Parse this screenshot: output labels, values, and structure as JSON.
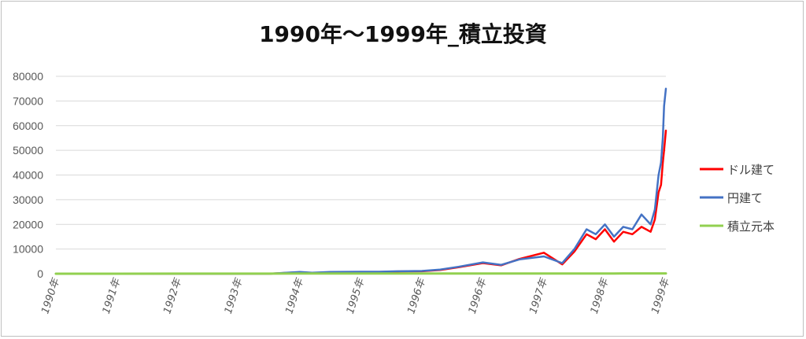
{
  "chart_data": {
    "type": "line",
    "title": "1990年～1999年_積立投資",
    "xlabel": "",
    "ylabel": "",
    "ylim": [
      0,
      80000
    ],
    "yticks": [
      0,
      10000,
      20000,
      30000,
      40000,
      50000,
      60000,
      70000,
      80000
    ],
    "x_tick_labels": [
      "1990年",
      "1991年",
      "1992年",
      "1993年",
      "1994年",
      "1995年",
      "1996年",
      "1996年",
      "1997年",
      "1998年",
      "1999年"
    ],
    "grid": true,
    "legend_position": "right",
    "x": [
      0,
      1,
      2,
      3,
      3.5,
      4,
      4.2,
      4.5,
      5,
      5.3,
      5.6,
      6,
      6.3,
      6.6,
      7,
      7.3,
      7.6,
      8,
      8.3,
      8.5,
      8.7,
      8.85,
      9,
      9.15,
      9.3,
      9.45,
      9.6,
      9.75,
      9.82,
      9.88,
      9.92,
      9.95,
      9.97,
      10.0
    ],
    "series": [
      {
        "name": "ドル建て",
        "color": "#ff0000",
        "values": [
          0,
          0,
          0,
          0,
          0,
          600,
          300,
          600,
          700,
          700,
          900,
          1000,
          1500,
          2600,
          4300,
          3400,
          6000,
          8500,
          3800,
          9000,
          16000,
          14000,
          18000,
          13000,
          17000,
          16000,
          19000,
          17000,
          22000,
          33000,
          36000,
          45000,
          50000,
          58000
        ]
      },
      {
        "name": "円建て",
        "color": "#4472c4",
        "values": [
          0,
          0,
          0,
          0,
          0,
          700,
          400,
          700,
          800,
          800,
          1000,
          1100,
          1700,
          2800,
          4600,
          3600,
          5800,
          7000,
          4300,
          10000,
          18000,
          16000,
          20000,
          15000,
          19000,
          18000,
          24000,
          20000,
          26000,
          40000,
          45000,
          55000,
          68000,
          75000
        ]
      },
      {
        "name": "積立元本",
        "color": "#92d050",
        "values": [
          0,
          12,
          24,
          36,
          42,
          48,
          50,
          54,
          60,
          64,
          67,
          72,
          76,
          79,
          84,
          88,
          91,
          96,
          100,
          102,
          104,
          106,
          108,
          110,
          112,
          113,
          115,
          117,
          118,
          118,
          119,
          119,
          120,
          120
        ]
      }
    ]
  }
}
